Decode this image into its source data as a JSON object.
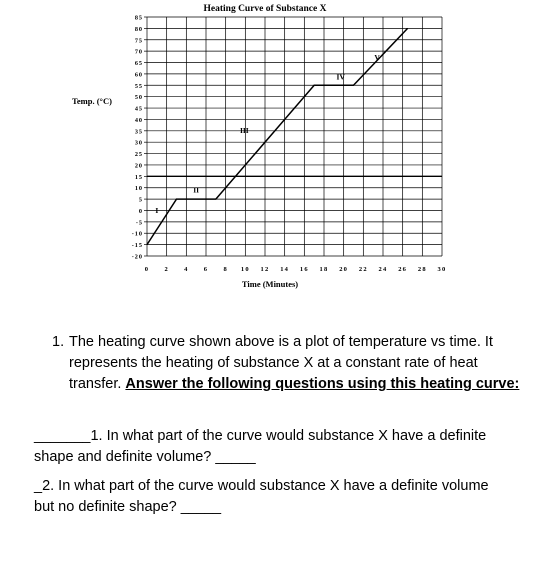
{
  "chart_data": {
    "type": "line",
    "title": "Heating Curve of Substance X",
    "xlabel": "Time (Minutes)",
    "ylabel": "Temp. (°C)",
    "xlim": [
      0,
      30
    ],
    "ylim": [
      -20,
      85
    ],
    "x_ticks": [
      "0",
      "2",
      "4",
      "6",
      "8",
      "10",
      "12",
      "14",
      "16",
      "18",
      "20",
      "22",
      "24",
      "26",
      "28",
      "30"
    ],
    "y_ticks": [
      "85",
      "80",
      "75",
      "70",
      "65",
      "60",
      "55",
      "50",
      "45",
      "40",
      "35",
      "30",
      "25",
      "20",
      "15",
      "10",
      "5",
      "0",
      "-5",
      "-10",
      "-15",
      "-20"
    ],
    "series": [
      {
        "x": [
          0,
          3,
          7,
          17,
          21,
          26.5
        ],
        "y": [
          -15,
          5,
          5,
          55,
          55,
          80
        ]
      }
    ],
    "segment_labels": [
      {
        "label": "I",
        "x": 1,
        "y": -1
      },
      {
        "label": "II",
        "x": 5,
        "y": 8
      },
      {
        "label": "III",
        "x": 9.9,
        "y": 34
      },
      {
        "label": "IV",
        "x": 19.7,
        "y": 57.5
      },
      {
        "label": "V",
        "x": 23.4,
        "y": 66
      }
    ]
  },
  "question_intro": {
    "number": "1.",
    "text_plain": "The heating curve shown above is a plot of temperature vs time. It represents the heating of substance X at a constant rate of heat transfer.",
    "text_emphasis": "Answer the following questions using this heating curve:"
  },
  "questions": [
    {
      "prefix": "_______1. In what part of the curve would substance X have a definite shape and definite volume?",
      "suffix_blank": "_____"
    },
    {
      "prefix": "_2. In what part of the curve would substance X have a definite volume but no definite shape?",
      "suffix_blank": "_____"
    }
  ]
}
